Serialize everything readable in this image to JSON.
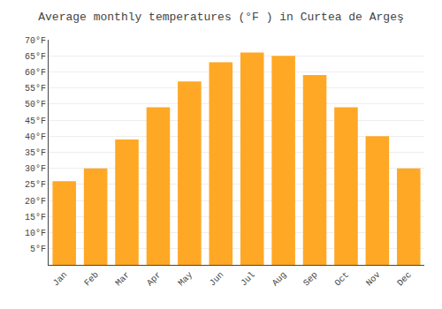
{
  "chart_data": {
    "type": "bar",
    "title": "Average monthly temperatures (°F ) in Curtea de Argeş",
    "categories": [
      "Jan",
      "Feb",
      "Mar",
      "Apr",
      "May",
      "Jun",
      "Jul",
      "Aug",
      "Sep",
      "Oct",
      "Nov",
      "Dec"
    ],
    "values": [
      26,
      30,
      39,
      49,
      57,
      63,
      66,
      65,
      59,
      49,
      40,
      30
    ],
    "color": "#FFA826",
    "ylim": [
      0,
      70
    ],
    "yticks": [
      {
        "value": 5,
        "label": "5°F"
      },
      {
        "value": 10,
        "label": "10°F"
      },
      {
        "value": 15,
        "label": "15°F"
      },
      {
        "value": 20,
        "label": "20°F"
      },
      {
        "value": 25,
        "label": "25°F"
      },
      {
        "value": 30,
        "label": "30°F"
      },
      {
        "value": 35,
        "label": "35°F"
      },
      {
        "value": 40,
        "label": "40°F"
      },
      {
        "value": 45,
        "label": "45°F"
      },
      {
        "value": 50,
        "label": "50°F"
      },
      {
        "value": 55,
        "label": "55°F"
      },
      {
        "value": 60,
        "label": "60°F"
      },
      {
        "value": 65,
        "label": "65°F"
      },
      {
        "value": 70,
        "label": "70°F"
      }
    ],
    "grid": true
  }
}
